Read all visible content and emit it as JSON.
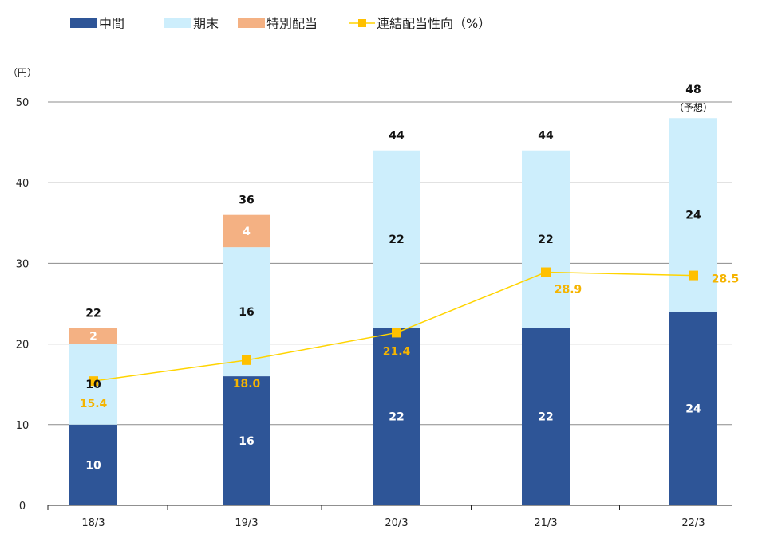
{
  "chart_data": {
    "type": "bar",
    "stacked": true,
    "categories": [
      "18/3",
      "19/3",
      "20/3",
      "21/3",
      "22/3"
    ],
    "series": [
      {
        "name": "中間",
        "values": [
          10,
          16,
          22,
          22,
          24
        ],
        "color": "#2e5597",
        "label_color": "#ffffff"
      },
      {
        "name": "期末",
        "values": [
          10,
          16,
          22,
          22,
          24
        ],
        "color": "#cdeefc",
        "label_color": "#111111"
      },
      {
        "name": "特別配当",
        "values": [
          2,
          4,
          0,
          0,
          0
        ],
        "color": "#f4b183",
        "label_color": "#ffffff"
      }
    ],
    "totals": [
      "22",
      "36",
      "44",
      "44",
      "48"
    ],
    "total_colors": [
      "#111111",
      "#111111",
      "#111111",
      "#111111",
      "#e8141c"
    ],
    "total_note": [
      "",
      "",
      "",
      "",
      "（予想）"
    ],
    "line_series": {
      "name": "連結配当性向（%）",
      "values": [
        15.4,
        18.0,
        21.4,
        28.9,
        28.5
      ],
      "labels": [
        "15.4",
        "18.0",
        "21.4",
        "28.9",
        "28.5"
      ],
      "color": "#ffd400",
      "marker_color": "#ffc000",
      "label_color": "#f5b400"
    },
    "ylabel": "（円）",
    "ylim": [
      0,
      50
    ],
    "yticks": [
      0,
      10,
      20,
      30,
      40,
      50
    ],
    "grid": true,
    "legend_position": "top-left"
  }
}
